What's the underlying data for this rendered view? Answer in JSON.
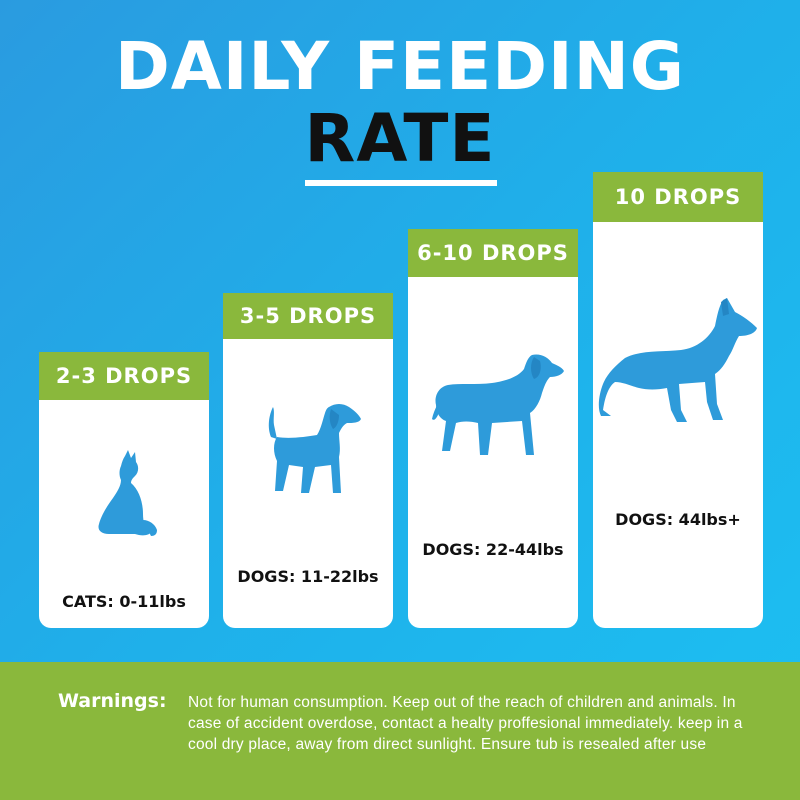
{
  "header": {
    "title_line1": "DAILY FEEDING",
    "title_line2": "RATE"
  },
  "colors": {
    "background": "#1fb0ea",
    "band": "#8ab83c",
    "animal": "#2e9bda",
    "card": "#ffffff"
  },
  "cards": [
    {
      "drops": "2-3 DROPS",
      "label": "CATS: 0-11lbs",
      "icon": "cat-icon"
    },
    {
      "drops": "3-5 DROPS",
      "label": "DOGS: 11-22lbs",
      "icon": "small-dog-icon"
    },
    {
      "drops": "6-10 DROPS",
      "label": "DOGS: 22-44lbs",
      "icon": "medium-dog-icon"
    },
    {
      "drops": "10 DROPS",
      "label": "DOGS: 44lbs+",
      "icon": "large-dog-icon"
    }
  ],
  "footer": {
    "warnings_label": "Warnings:",
    "warnings_text": "Not for human consumption. Keep out of the reach of children and animals. In case of accident overdose, contact a healty proffesional immediately. keep in a cool dry place, away from direct sunlight. Ensure tub is resealed after use"
  }
}
